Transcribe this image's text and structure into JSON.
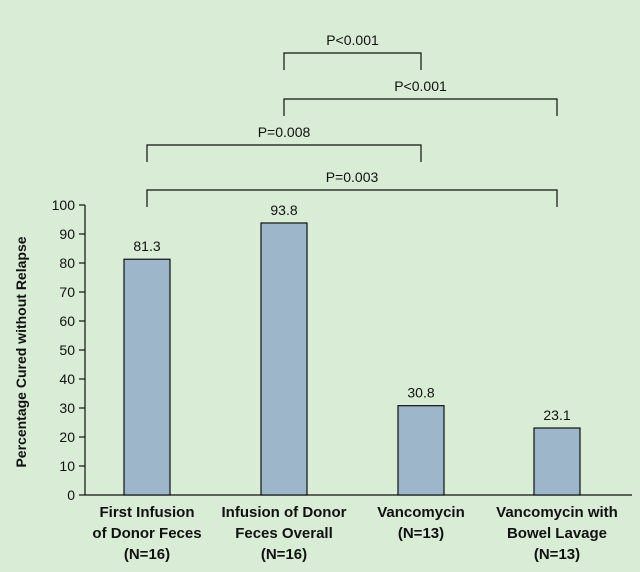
{
  "chart_data": {
    "type": "bar",
    "categories": [
      [
        "First Infusion",
        "of Donor Feces",
        "(N=16)"
      ],
      [
        "Infusion of Donor",
        "Feces Overall",
        "(N=16)"
      ],
      [
        "Vancomycin",
        "(N=13)"
      ],
      [
        "Vancomycin with",
        "Bowel Lavage",
        "(N=13)"
      ]
    ],
    "values": [
      81.3,
      93.8,
      30.8,
      23.1
    ],
    "value_labels": [
      "81.3",
      "93.8",
      "30.8",
      "23.1"
    ],
    "ylabel": "Percentage Cured without Relapse",
    "ylim": [
      0,
      100
    ],
    "yticks": [
      0,
      10,
      20,
      30,
      40,
      50,
      60,
      70,
      80,
      90,
      100
    ],
    "grid": false,
    "bar_color": "#9db6c9",
    "background": "#d9ecd6",
    "comparisons": [
      {
        "from": 1,
        "to": 2,
        "label": "P<0.001"
      },
      {
        "from": 1,
        "to": 3,
        "label": "P<0.001"
      },
      {
        "from": 0,
        "to": 2,
        "label": "P=0.008"
      },
      {
        "from": 0,
        "to": 3,
        "label": "P=0.003"
      }
    ]
  }
}
